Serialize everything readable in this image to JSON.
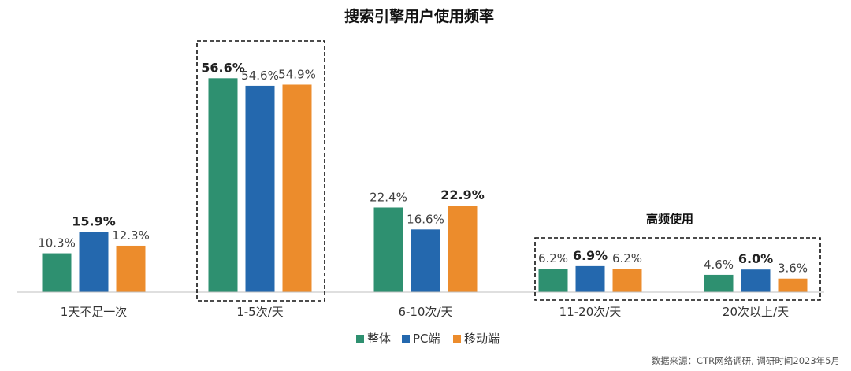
{
  "chart_data": {
    "type": "bar",
    "title": "搜索引擎用户使用频率",
    "categories": [
      "1天不足一次",
      "1-5次/天",
      "6-10次/天",
      "11-20次/天",
      "20次以上/天"
    ],
    "series": [
      {
        "name": "整体",
        "color": "#2E9070",
        "values": [
          10.3,
          56.6,
          22.4,
          6.2,
          4.6
        ],
        "labels": [
          "10.3%",
          "56.6%",
          "22.4%",
          "6.2%",
          "4.6%"
        ]
      },
      {
        "name": "PC端",
        "color": "#2468AE",
        "values": [
          15.9,
          54.6,
          16.6,
          6.9,
          6.0
        ],
        "labels": [
          "15.9%",
          "54.6%",
          "16.6%",
          "6.9%",
          "6.0%"
        ]
      },
      {
        "name": "移动端",
        "color": "#EC8C2C",
        "values": [
          12.3,
          54.9,
          22.9,
          6.2,
          3.6
        ],
        "labels": [
          "12.3%",
          "54.9%",
          "22.9%",
          "6.2%",
          "3.6%"
        ]
      }
    ],
    "emphasized_series_per_category": [
      1,
      0,
      2,
      1,
      1
    ],
    "annotation": "高频使用",
    "legend_position": "bottom",
    "grid": false,
    "source": "数据来源：CTR网络调研, 调研时间2023年5月"
  }
}
